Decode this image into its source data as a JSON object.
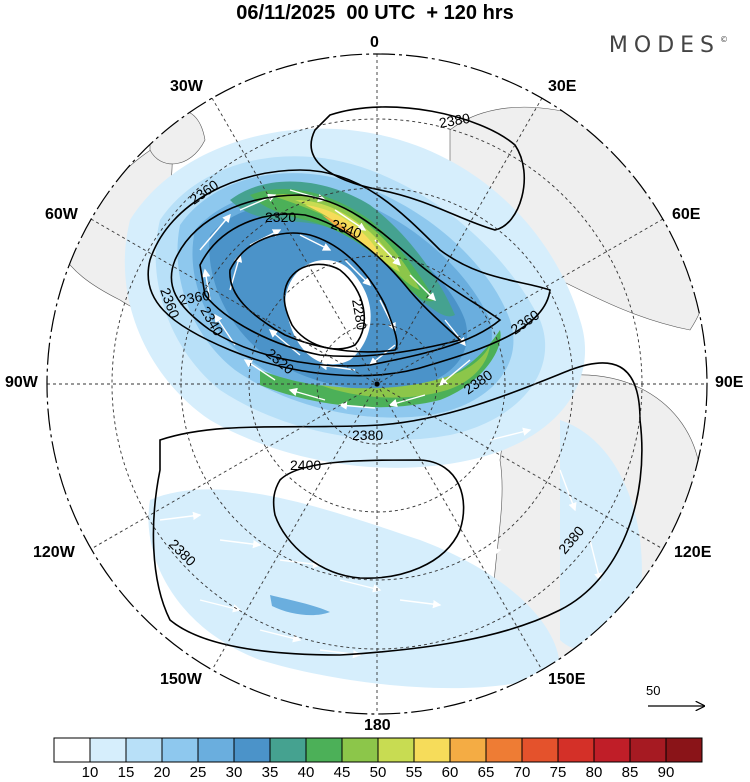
{
  "title": "06/11/2025  00 UTC  + 120 hrs",
  "brand": "MODES",
  "brand_mark": "©",
  "meridian_labels": {
    "lon_0": "0",
    "lon_30e": "30E",
    "lon_60e": "60E",
    "lon_90e": "90E",
    "lon_120e": "120E",
    "lon_150e": "150E",
    "lon_180": "180",
    "lon_150w": "150W",
    "lon_120w": "120W",
    "lon_90w": "90W",
    "lon_60w": "60W",
    "lon_30w": "30W"
  },
  "contour_labels": {
    "c2380_top": "2380",
    "c2360_left_a": "2360",
    "c2360_left_b": "2360",
    "c2360_left_c": "2360",
    "c2340_left": "2340",
    "c2340_top": "2340",
    "c2320_top": "2320",
    "c2320_bottom": "2320",
    "c2280": "2280",
    "c2360_right": "2360",
    "c2380_right": "2380",
    "c2380_center": "2380",
    "c2400": "2400",
    "c2380_sw": "2380",
    "c2380_se": "2380"
  },
  "colorbar": {
    "labels": [
      "10",
      "15",
      "20",
      "25",
      "30",
      "35",
      "40",
      "45",
      "50",
      "55",
      "60",
      "65",
      "70",
      "75",
      "80",
      "85",
      "90"
    ],
    "colors": [
      "#ffffff",
      "#d6eefc",
      "#b8e0f8",
      "#8ec8ee",
      "#6aaede",
      "#4b93c9",
      "#45a290",
      "#4cb058",
      "#8cc64a",
      "#c8dc52",
      "#f6dc5a",
      "#f4ac44",
      "#ee7c34",
      "#e4522c",
      "#d43028",
      "#c01e28",
      "#a61a22",
      "#8a1418"
    ]
  },
  "reference_vector": {
    "value": "50"
  },
  "colors": {
    "land": "#efefef",
    "contour": "#000000",
    "grid": "#333333"
  }
}
